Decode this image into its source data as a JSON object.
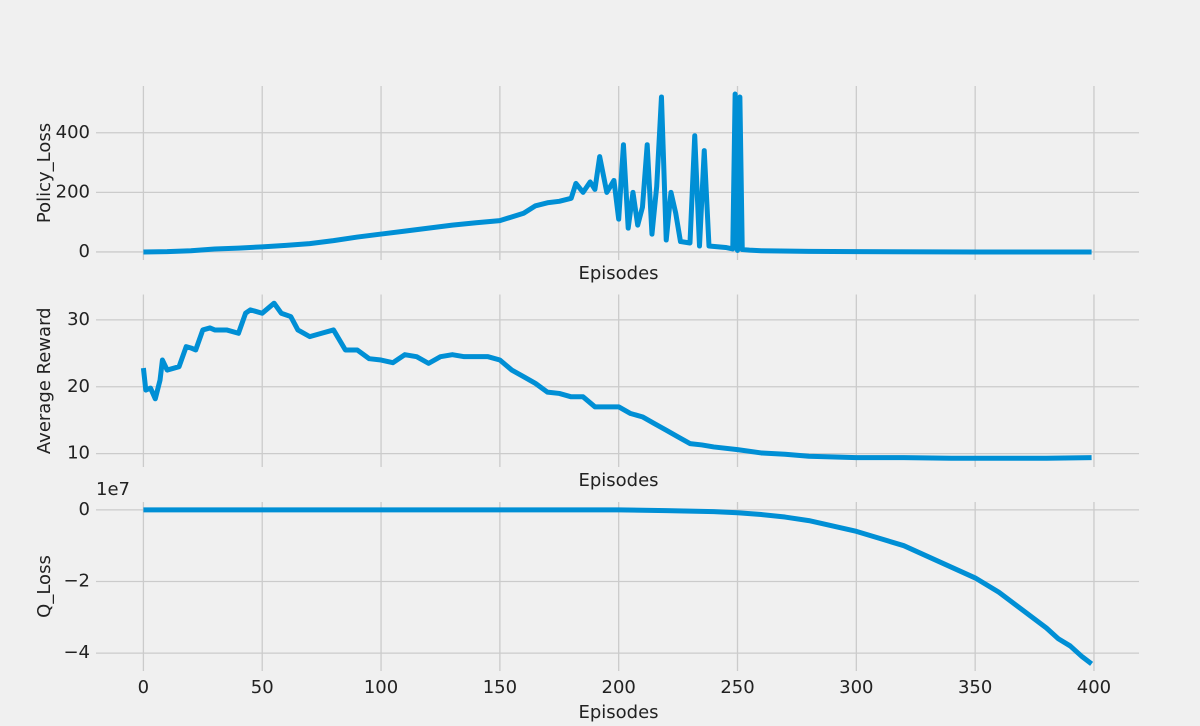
{
  "chart_data": [
    {
      "type": "line",
      "ylabel": "Policy_Loss",
      "xlabel": "Episodes",
      "color": "#008fd5",
      "grid": true,
      "xtick_labels": false,
      "xlim": [
        -19.95,
        418.95
      ],
      "ylim": [
        -27,
        557
      ],
      "xticks": [
        0,
        50,
        100,
        150,
        200,
        250,
        300,
        350,
        400
      ],
      "yticks": [
        0,
        200,
        400
      ],
      "x": [
        0,
        10,
        20,
        30,
        40,
        50,
        60,
        70,
        80,
        90,
        100,
        110,
        120,
        130,
        140,
        150,
        160,
        165,
        170,
        175,
        180,
        182,
        185,
        188,
        190,
        192,
        195,
        198,
        200,
        202,
        204,
        206,
        208,
        210,
        212,
        214,
        216,
        218,
        220,
        222,
        224,
        226,
        230,
        232,
        234,
        236,
        238,
        245,
        248,
        249,
        250,
        251,
        252,
        255,
        260,
        280,
        300,
        350,
        399
      ],
      "values": [
        0,
        1,
        4,
        10,
        13,
        17,
        22,
        28,
        38,
        50,
        60,
        70,
        80,
        90,
        98,
        105,
        130,
        155,
        165,
        170,
        180,
        230,
        200,
        235,
        210,
        320,
        200,
        240,
        110,
        360,
        80,
        200,
        90,
        150,
        360,
        60,
        220,
        520,
        40,
        200,
        130,
        35,
        30,
        390,
        20,
        340,
        20,
        15,
        10,
        530,
        5,
        520,
        8,
        6,
        4,
        2,
        1,
        0,
        0
      ]
    },
    {
      "type": "line",
      "ylabel": "Average Reward",
      "xlabel": "Episodes",
      "color": "#008fd5",
      "grid": true,
      "xtick_labels": false,
      "xlim": [
        -19.95,
        418.95
      ],
      "ylim": [
        8.0,
        33.8
      ],
      "xticks": [
        0,
        50,
        100,
        150,
        200,
        250,
        300,
        350,
        400
      ],
      "yticks": [
        10,
        20,
        30
      ],
      "x": [
        0,
        1,
        3,
        5,
        7,
        8,
        10,
        15,
        18,
        20,
        22,
        25,
        28,
        30,
        35,
        40,
        43,
        45,
        50,
        55,
        58,
        62,
        65,
        70,
        75,
        80,
        85,
        90,
        95,
        100,
        105,
        110,
        115,
        120,
        125,
        130,
        135,
        140,
        145,
        150,
        155,
        160,
        165,
        170,
        175,
        180,
        185,
        190,
        195,
        200,
        205,
        210,
        215,
        220,
        225,
        230,
        235,
        240,
        250,
        260,
        270,
        280,
        300,
        320,
        340,
        360,
        380,
        399
      ],
      "values": [
        22.8,
        19.5,
        19.8,
        18.2,
        21,
        24,
        22.5,
        23,
        26,
        25.8,
        25.5,
        28.5,
        28.8,
        28.5,
        28.5,
        28,
        31,
        31.5,
        31,
        32.5,
        31,
        30.5,
        28.5,
        27.5,
        28,
        28.5,
        25.5,
        25.5,
        24.2,
        24,
        23.6,
        24.8,
        24.5,
        23.5,
        24.5,
        24.8,
        24.5,
        24.5,
        24.5,
        24,
        22.5,
        21.5,
        20.5,
        19.2,
        19,
        18.5,
        18.5,
        17,
        17,
        17,
        16,
        15.5,
        14.5,
        13.5,
        12.5,
        11.5,
        11.3,
        11,
        10.6,
        10.1,
        9.9,
        9.6,
        9.4,
        9.4,
        9.3,
        9.3,
        9.3,
        9.4
      ]
    },
    {
      "type": "line",
      "ylabel": "Q_Loss",
      "xlabel": "Episodes",
      "offset_label": "1e7",
      "color": "#008fd5",
      "grid": true,
      "xtick_labels": true,
      "xlim": [
        -19.95,
        418.95
      ],
      "ylim": [
        -4.5,
        0.22
      ],
      "xticks": [
        0,
        50,
        100,
        150,
        200,
        250,
        300,
        350,
        400
      ],
      "yticks": [
        {
          "value": -4,
          "label": "−4"
        },
        {
          "value": -2,
          "label": "−2"
        },
        0
      ],
      "x": [
        0,
        20,
        40,
        60,
        80,
        100,
        120,
        140,
        160,
        180,
        200,
        220,
        240,
        250,
        260,
        270,
        280,
        290,
        300,
        310,
        320,
        330,
        340,
        350,
        360,
        370,
        380,
        385,
        390,
        395,
        399
      ],
      "values": [
        0,
        0,
        0,
        0,
        0,
        0,
        0,
        0,
        0,
        0,
        0,
        -0.02,
        -0.05,
        -0.08,
        -0.13,
        -0.2,
        -0.3,
        -0.45,
        -0.6,
        -0.8,
        -1.0,
        -1.3,
        -1.6,
        -1.9,
        -2.3,
        -2.8,
        -3.3,
        -3.6,
        -3.8,
        -4.1,
        -4.3
      ]
    }
  ]
}
